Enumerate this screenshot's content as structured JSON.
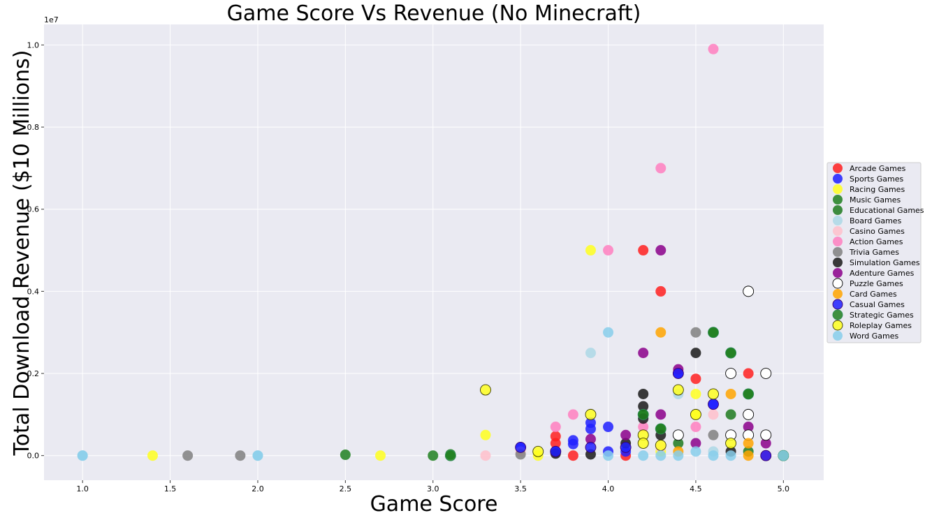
{
  "chart_data": {
    "type": "scatter",
    "title": "Game Score Vs Revenue (No Minecraft)",
    "xlabel": "Game Score",
    "ylabel": "Total Download Revenue ($10 Millions)",
    "y_offset_label": "1e7",
    "xlim": [
      0.78,
      5.23
    ],
    "ylim": [
      -0.06,
      1.05
    ],
    "x_ticks": [
      "1.0",
      "1.5",
      "2.0",
      "2.5",
      "3.0",
      "3.5",
      "4.0",
      "4.5",
      "5.0"
    ],
    "y_ticks": [
      "0.0",
      "0.2",
      "0.4",
      "0.6",
      "0.8",
      "1.0"
    ],
    "grid": true,
    "legend_position": "center-right",
    "series": [
      {
        "name": "Arcade Games",
        "color": "#ff2020",
        "edge": "none",
        "points": [
          [
            3.7,
            0.047
          ],
          [
            3.7,
            0.03
          ],
          [
            3.8,
            0.0
          ],
          [
            4.1,
            0.0
          ],
          [
            4.2,
            0.5
          ],
          [
            4.3,
            0.4
          ],
          [
            4.5,
            0.187
          ],
          [
            4.8,
            0.2
          ],
          [
            4.9,
            0.0
          ]
        ]
      },
      {
        "name": "Sports Games",
        "color": "#2020ff",
        "edge": "none",
        "points": [
          [
            3.5,
            0.02
          ],
          [
            3.7,
            0.01
          ],
          [
            3.8,
            0.037
          ],
          [
            3.8,
            0.028
          ],
          [
            3.9,
            0.08
          ],
          [
            3.9,
            0.065
          ],
          [
            4.0,
            0.07
          ],
          [
            4.0,
            0.01
          ],
          [
            4.1,
            0.01
          ],
          [
            4.4,
            0.2
          ],
          [
            4.6,
            0.125
          ]
        ]
      },
      {
        "name": "Racing Games",
        "color": "#ffff20",
        "edge": "none",
        "points": [
          [
            1.4,
            0.0
          ],
          [
            2.7,
            0.0
          ],
          [
            3.3,
            0.05
          ],
          [
            3.6,
            0.0
          ],
          [
            3.9,
            0.5
          ],
          [
            4.3,
            0.01
          ],
          [
            4.5,
            0.15
          ],
          [
            4.5,
            0.1
          ]
        ]
      },
      {
        "name": "Music Games",
        "color": "#208020",
        "edge": "none",
        "points": [
          [
            2.5,
            0.002
          ],
          [
            3.0,
            0.0
          ],
          [
            3.1,
            0.003
          ],
          [
            4.2,
            0.1
          ],
          [
            4.8,
            0.15
          ],
          [
            4.7,
            0.25
          ]
        ]
      },
      {
        "name": "Educational Games",
        "color": "#1f7a1f",
        "edge": "none",
        "points": [
          [
            4.3,
            0.065
          ],
          [
            4.4,
            0.03
          ],
          [
            4.6,
            0.3
          ],
          [
            4.7,
            0.1
          ],
          [
            4.8,
            0.01
          ]
        ]
      },
      {
        "name": "Board Games",
        "color": "#add8e6",
        "edge": "none",
        "points": [
          [
            1.0,
            0.0
          ],
          [
            2.0,
            0.0
          ],
          [
            3.9,
            0.25
          ],
          [
            4.4,
            0.15
          ],
          [
            4.6,
            0.01
          ]
        ]
      },
      {
        "name": "Casino Games",
        "color": "#ffc0cb",
        "edge": "none",
        "points": [
          [
            3.3,
            0.0
          ],
          [
            3.5,
            0.01
          ],
          [
            4.3,
            0.02
          ],
          [
            4.6,
            0.1
          ]
        ]
      },
      {
        "name": "Action Games",
        "color": "#ff7fbf",
        "edge": "none",
        "points": [
          [
            3.7,
            0.07
          ],
          [
            3.8,
            0.1
          ],
          [
            4.0,
            0.5
          ],
          [
            4.2,
            0.07
          ],
          [
            4.3,
            0.7
          ],
          [
            4.5,
            0.07
          ],
          [
            4.6,
            0.99
          ]
        ]
      },
      {
        "name": "Trivia Games",
        "color": "#808080",
        "edge": "none",
        "points": [
          [
            1.6,
            0.0
          ],
          [
            1.9,
            0.0
          ],
          [
            3.5,
            0.003
          ],
          [
            4.5,
            0.3
          ],
          [
            4.6,
            0.05
          ]
        ]
      },
      {
        "name": "Simulation Games",
        "color": "#1a1a1a",
        "edge": "none",
        "points": [
          [
            3.7,
            0.005
          ],
          [
            3.9,
            0.003
          ],
          [
            4.1,
            0.03
          ],
          [
            4.2,
            0.15
          ],
          [
            4.2,
            0.12
          ],
          [
            4.2,
            0.09
          ],
          [
            4.3,
            0.05
          ],
          [
            4.5,
            0.25
          ],
          [
            4.7,
            0.01
          ]
        ]
      },
      {
        "name": "Adenture Games",
        "color": "#8b008b",
        "edge": "none",
        "points": [
          [
            3.9,
            0.04
          ],
          [
            4.1,
            0.05
          ],
          [
            4.2,
            0.25
          ],
          [
            4.3,
            0.5
          ],
          [
            4.3,
            0.1
          ],
          [
            4.4,
            0.21
          ],
          [
            4.5,
            0.03
          ],
          [
            4.8,
            0.07
          ],
          [
            4.9,
            0.03
          ]
        ]
      },
      {
        "name": "Puzzle Games",
        "color": "#ffffff",
        "edge": "#000000",
        "points": [
          [
            4.4,
            0.05
          ],
          [
            4.7,
            0.2
          ],
          [
            4.7,
            0.05
          ],
          [
            4.8,
            0.4
          ],
          [
            4.8,
            0.1
          ],
          [
            4.8,
            0.05
          ],
          [
            4.9,
            0.2
          ],
          [
            4.9,
            0.05
          ]
        ]
      },
      {
        "name": "Card Games",
        "color": "#ffa500",
        "edge": "none",
        "points": [
          [
            4.3,
            0.3
          ],
          [
            4.4,
            0.01
          ],
          [
            4.7,
            0.15
          ],
          [
            4.8,
            0.0
          ],
          [
            4.8,
            0.03
          ]
        ]
      },
      {
        "name": "Casual Games",
        "color": "#2020ff",
        "edge": "#3a006a",
        "points": [
          [
            3.5,
            0.02
          ],
          [
            3.7,
            0.01
          ],
          [
            3.9,
            0.02
          ],
          [
            4.1,
            0.02
          ],
          [
            4.4,
            0.2
          ],
          [
            4.6,
            0.125
          ],
          [
            4.9,
            0.0
          ]
        ]
      },
      {
        "name": "Strategic Games",
        "color": "#208020",
        "edge": "#2e8b57",
        "points": [
          [
            3.1,
            0.0
          ],
          [
            4.2,
            0.1
          ],
          [
            4.3,
            0.065
          ],
          [
            4.6,
            0.3
          ],
          [
            4.7,
            0.25
          ],
          [
            4.8,
            0.15
          ],
          [
            5.0,
            0.0
          ]
        ]
      },
      {
        "name": "Roleplay Games",
        "color": "#ffff20",
        "edge": "#3a3a00",
        "points": [
          [
            3.3,
            0.16
          ],
          [
            3.6,
            0.01
          ],
          [
            3.9,
            0.1
          ],
          [
            4.2,
            0.05
          ],
          [
            4.2,
            0.03
          ],
          [
            4.3,
            0.025
          ],
          [
            4.4,
            0.16
          ],
          [
            4.5,
            0.1
          ],
          [
            4.6,
            0.15
          ],
          [
            4.7,
            0.03
          ]
        ]
      },
      {
        "name": "Word Games",
        "color": "#87ceeb",
        "edge": "none",
        "points": [
          [
            1.0,
            0.0
          ],
          [
            2.0,
            0.0
          ],
          [
            4.0,
            0.3
          ],
          [
            4.0,
            0.0
          ],
          [
            4.2,
            0.0
          ],
          [
            4.3,
            0.0
          ],
          [
            4.4,
            0.0
          ],
          [
            4.5,
            0.01
          ],
          [
            4.6,
            0.0
          ],
          [
            4.7,
            0.0
          ],
          [
            5.0,
            0.0
          ]
        ]
      }
    ]
  }
}
